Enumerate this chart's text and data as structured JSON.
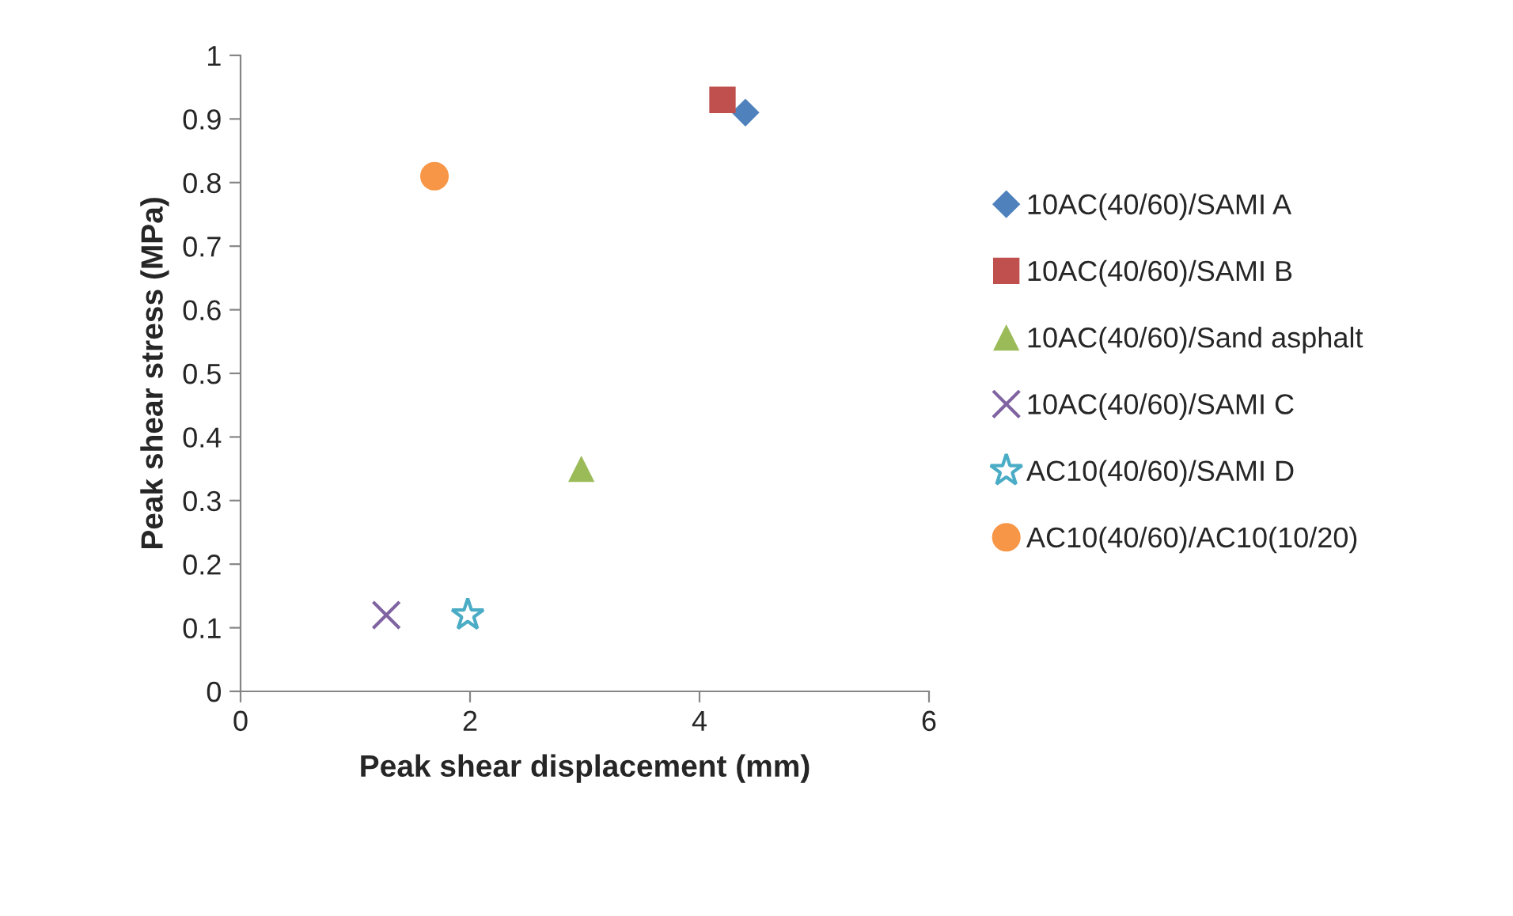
{
  "chart_data": {
    "type": "scatter",
    "xlabel": "Peak shear displacement (mm)",
    "ylabel": "Peak shear stress (MPa)",
    "xlim": [
      0,
      6
    ],
    "xticks": [
      0,
      2,
      4,
      6
    ],
    "ylim": [
      0,
      1
    ],
    "yticks": [
      0,
      0.1,
      0.2,
      0.3,
      0.4,
      0.5,
      0.6,
      0.7,
      0.8,
      0.9,
      1
    ],
    "grid": false,
    "legend": "right",
    "series": [
      {
        "name": "10AC(40/60)/SAMI A",
        "color": "#4f81bd",
        "marker": "diamond",
        "x": [
          4.4
        ],
        "values": [
          0.91
        ]
      },
      {
        "name": "10AC(40/60)/SAMI B",
        "color": "#c0504d",
        "marker": "square",
        "x": [
          4.2
        ],
        "values": [
          0.93
        ]
      },
      {
        "name": "10AC(40/60)/Sand asphalt",
        "color": "#9bbb59",
        "marker": "triangle",
        "x": [
          2.97
        ],
        "values": [
          0.35
        ]
      },
      {
        "name": "10AC(40/60)/SAMI C",
        "color": "#8064a2",
        "marker": "cross",
        "x": [
          1.27
        ],
        "values": [
          0.12
        ]
      },
      {
        "name": "AC10(40/60)/SAMI D",
        "color": "#4bacc6",
        "marker": "star",
        "x": [
          1.98
        ],
        "values": [
          0.12
        ]
      },
      {
        "name": "AC10(40/60)/AC10(10/20)",
        "color": "#f79646",
        "marker": "circle",
        "x": [
          1.69
        ],
        "values": [
          0.81
        ]
      }
    ]
  }
}
